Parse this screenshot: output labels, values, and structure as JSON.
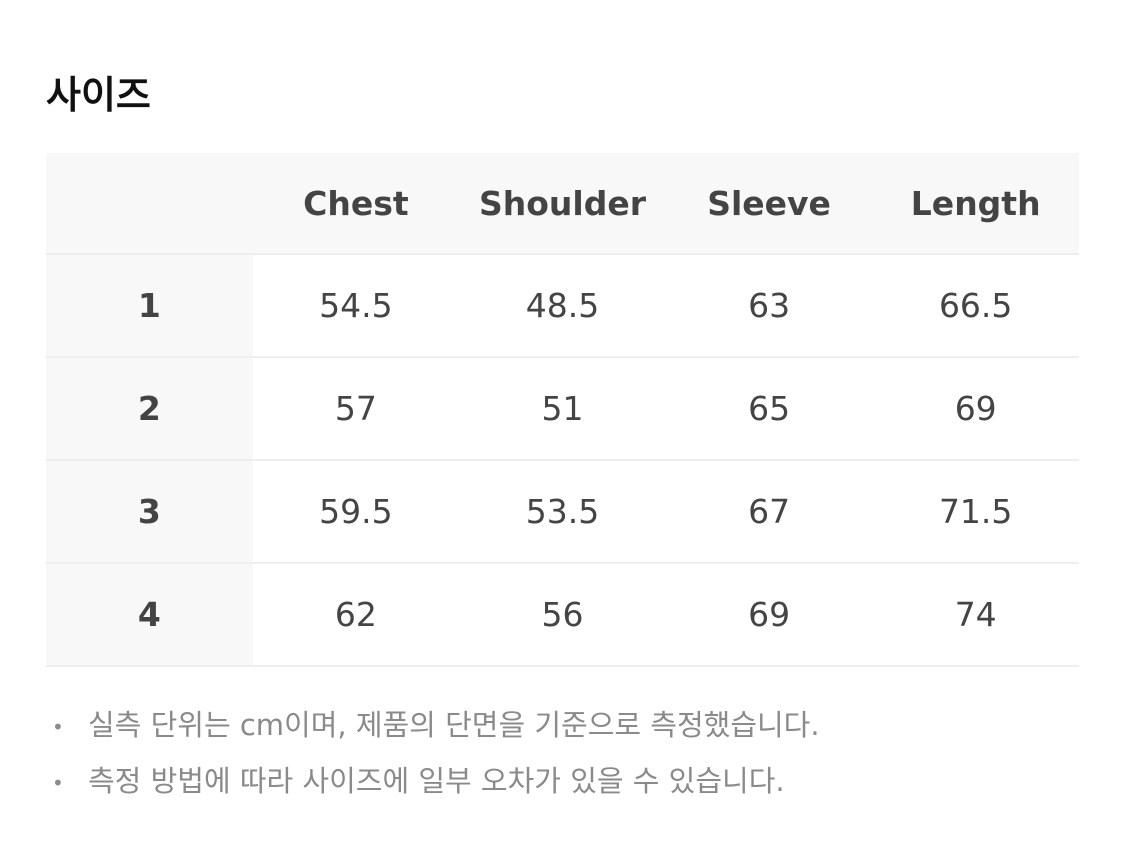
{
  "title": "사이즈",
  "table": {
    "headers": [
      "",
      "Chest",
      "Shoulder",
      "Sleeve",
      "Length"
    ],
    "rows": [
      {
        "size": "1",
        "values": [
          "54.5",
          "48.5",
          "63",
          "66.5"
        ]
      },
      {
        "size": "2",
        "values": [
          "57",
          "51",
          "65",
          "69"
        ]
      },
      {
        "size": "3",
        "values": [
          "59.5",
          "53.5",
          "67",
          "71.5"
        ]
      },
      {
        "size": "4",
        "values": [
          "62",
          "56",
          "69",
          "74"
        ]
      }
    ]
  },
  "notes": [
    "실측 단위는 cm이며, 제품의 단면을 기준으로 측정했습니다.",
    "측정 방법에 따라 사이즈에 일부 오차가 있을 수 있습니다."
  ],
  "bullet": "•"
}
